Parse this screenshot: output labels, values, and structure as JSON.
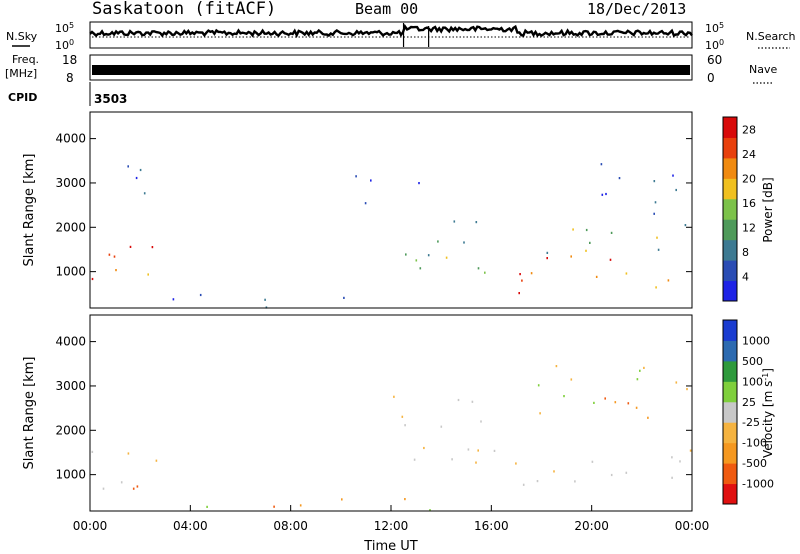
{
  "header": {
    "station": "Saskatoon (fitACF)",
    "beam": "Beam 00",
    "date": "18/Dec/2013"
  },
  "strips": {
    "nsky_label": "N.Sky",
    "nsky_ticks": [
      "10^5",
      "10^0"
    ],
    "nsearch_label": "N.Search",
    "nsearch_ticks": [
      "10^5",
      "10^0"
    ],
    "freq_label_1": "Freq.",
    "freq_label_2": "[MHz]",
    "freq_ticks": [
      "18",
      "8"
    ],
    "nave_label": "Nave",
    "nave_ticks": [
      "60",
      "0"
    ],
    "cpid_label": "CPID",
    "cpid_value": "3503"
  },
  "colors": {
    "power_scale": [
      "#1e23e6",
      "#2a4cb4",
      "#3d7a92",
      "#4e9a5a",
      "#7cc24a",
      "#f0c020",
      "#f08a10",
      "#e8400c",
      "#d80a0a"
    ],
    "velocity_scale": [
      "#e01010",
      "#ef5a10",
      "#f59820",
      "#f5b340",
      "#c8c8c8",
      "#7fcf3c",
      "#2e9a3c",
      "#2c6ab0",
      "#1a3cd0"
    ]
  },
  "chart_data": [
    {
      "type": "heatmap",
      "name": "power-panel",
      "ylabel": "Slant Range [km]",
      "ylim": [
        180,
        4600
      ],
      "y_ticks": [
        "1000",
        "2000",
        "3000",
        "4000"
      ],
      "xlim_hours": [
        0,
        24
      ],
      "colorbar": {
        "label": "Power [dB]",
        "ticks": [
          "4",
          "8",
          "12",
          "16",
          "20",
          "24",
          "28"
        ],
        "range": [
          0,
          30
        ]
      },
      "regions": [
        {
          "t": [
            0.0,
            1.4
          ],
          "r": [
            600,
            2200
          ],
          "level": "high"
        },
        {
          "t": [
            1.4,
            3.2
          ],
          "r": [
            650,
            1600
          ],
          "level": "high"
        },
        {
          "t": [
            0.4,
            2.6
          ],
          "r": [
            2400,
            3500
          ],
          "level": "low"
        },
        {
          "t": [
            3.0,
            12.0
          ],
          "r": [
            200,
            500
          ],
          "level": "low"
        },
        {
          "t": [
            10.5,
            13.5
          ],
          "r": [
            2500,
            3300
          ],
          "level": "low"
        },
        {
          "t": [
            12.5,
            16.0
          ],
          "r": [
            900,
            2800
          ],
          "level": "medium"
        },
        {
          "t": [
            16.5,
            24.0
          ],
          "r": [
            500,
            1400
          ],
          "level": "high"
        },
        {
          "t": [
            16.0,
            24.0
          ],
          "r": [
            1400,
            2100
          ],
          "level": "medium"
        },
        {
          "t": [
            19.5,
            23.5
          ],
          "r": [
            2200,
            3500
          ],
          "level": "low"
        }
      ]
    },
    {
      "type": "heatmap",
      "name": "velocity-panel",
      "ylabel": "Slant Range [km]",
      "ylim": [
        180,
        4600
      ],
      "y_ticks": [
        "1000",
        "2000",
        "3000",
        "4000"
      ],
      "x_ticks": [
        "00:00",
        "04:00",
        "08:00",
        "12:00",
        "16:00",
        "20:00",
        "00:00"
      ],
      "xlim_hours": [
        0,
        24
      ],
      "xlabel": "Time UT",
      "colorbar": {
        "label": "Velocity [m s^-1]",
        "ticks": [
          "-1000",
          "-500",
          "-100",
          "-25",
          "25",
          "100",
          "500",
          "1000"
        ]
      },
      "regions": [
        {
          "t": [
            0.0,
            3.2
          ],
          "r": [
            700,
            2100
          ],
          "level": "ground-scatter-and-negative"
        },
        {
          "t": [
            3.0,
            15.0
          ],
          "r": [
            200,
            500
          ],
          "level": "negative"
        },
        {
          "t": [
            12.0,
            16.0
          ],
          "r": [
            1000,
            3000
          ],
          "level": "ground-scatter"
        },
        {
          "t": [
            16.0,
            24.0
          ],
          "r": [
            600,
            1600
          ],
          "level": "ground-scatter"
        },
        {
          "t": [
            17.5,
            24.0
          ],
          "r": [
            2000,
            3500
          ],
          "level": "negative"
        }
      ]
    }
  ]
}
